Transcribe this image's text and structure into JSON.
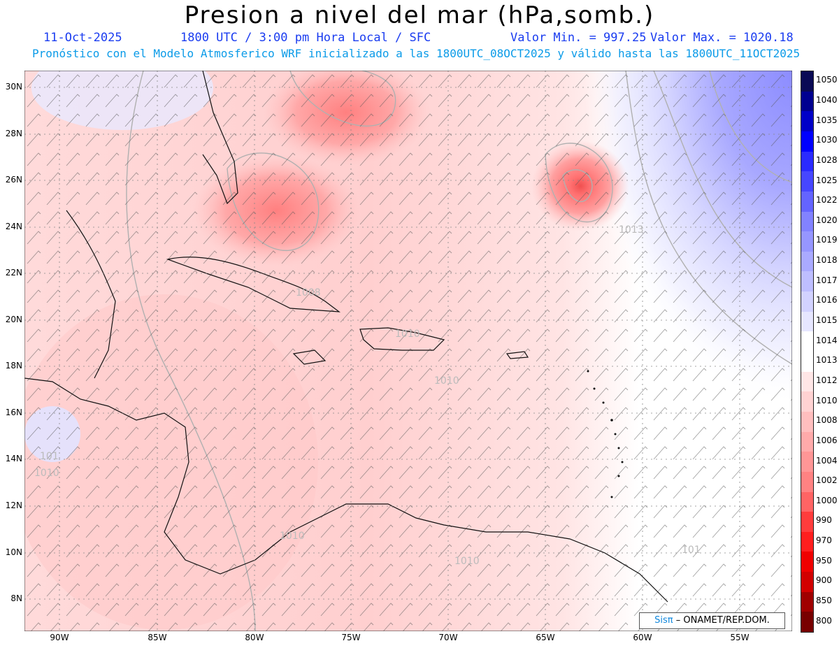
{
  "title": "Presion a nivel del mar (hPa,somb.)",
  "header": {
    "date": "11-Oct-2025",
    "time": "1800 UTC / 3:00 pm Hora Local / SFC",
    "min": "Valor Min. = 997.25",
    "max": "Valor Max. = 1020.18",
    "model": "Pronóstico con el Modelo Atmosferico WRF inicializado a las 1800UTC_08OCT2025 y válido hasta las  1800UTC_11OCT2025"
  },
  "lat_ticks": [
    "30N",
    "28N",
    "26N",
    "24N",
    "22N",
    "20N",
    "18N",
    "16N",
    "14N",
    "12N",
    "10N",
    "8N"
  ],
  "lon_ticks": [
    "90W",
    "85W",
    "80W",
    "75W",
    "70W",
    "65W",
    "60W",
    "55W"
  ],
  "contour_labels": [
    "1013",
    "1008",
    "1010",
    "1010",
    "101",
    "1010",
    "1010",
    "1010",
    "101"
  ],
  "colorbar": {
    "labels": [
      "1050",
      "1040",
      "1035",
      "1030",
      "1028",
      "1025",
      "1022",
      "1020",
      "1019",
      "1018",
      "1017",
      "1016",
      "1015",
      "1014",
      "1013",
      "1012",
      "1010",
      "1008",
      "1006",
      "1004",
      "1002",
      "1000",
      "990",
      "970",
      "950",
      "900",
      "850",
      "800"
    ],
    "colors": [
      "#0a0a55",
      "#000090",
      "#0000c8",
      "#0000ff",
      "#2a2aff",
      "#4646ff",
      "#6464ff",
      "#8282ff",
      "#9696ff",
      "#aaaaff",
      "#bebeff",
      "#d2d2ff",
      "#e6e6ff",
      "#ffffff",
      "#ffffff",
      "#ffe6e6",
      "#ffd2d2",
      "#ffbebe",
      "#ffaaaa",
      "#ff9696",
      "#ff8282",
      "#ff6464",
      "#ff3c3c",
      "#ff1e1e",
      "#f00000",
      "#d20000",
      "#a00000",
      "#780000"
    ]
  },
  "credit": {
    "logo": "Sisπ",
    "text": "– ONAMET/REP.DOM."
  }
}
